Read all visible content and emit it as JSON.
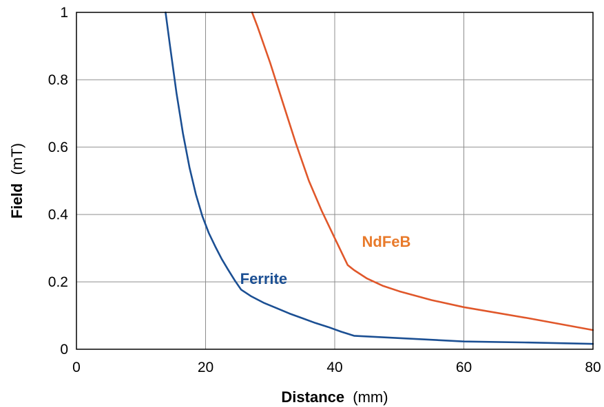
{
  "chart_data": {
    "type": "line",
    "title": "",
    "xlabel": {
      "name": "Distance",
      "unit": "(mm)"
    },
    "ylabel": {
      "name": "Field",
      "unit": "(mT)"
    },
    "xlim": [
      0,
      80
    ],
    "ylim": [
      0,
      1
    ],
    "xticks": [
      0,
      20,
      40,
      60,
      80
    ],
    "xtick_labels": [
      "0",
      "20",
      "40",
      "60",
      "80"
    ],
    "yticks": [
      0,
      0.2,
      0.4,
      0.6,
      0.8,
      1
    ],
    "ytick_labels": [
      "0",
      "0.2",
      "0.4",
      "0.6",
      "0.8",
      "1"
    ],
    "grid": true,
    "legend": "inline labels",
    "series": [
      {
        "name": "Ferrite",
        "color": "#1b4f93",
        "x": [
          13.8,
          14.5,
          15.5,
          16.5,
          17.5,
          18.5,
          19.5,
          20.5,
          21.5,
          22.5,
          23.5,
          24.5,
          25.5,
          27,
          29,
          31,
          33,
          35,
          37,
          39,
          41,
          43,
          50,
          60,
          70,
          80
        ],
        "y": [
          1.0,
          0.9,
          0.76,
          0.64,
          0.54,
          0.46,
          0.395,
          0.345,
          0.305,
          0.268,
          0.236,
          0.205,
          0.177,
          0.158,
          0.138,
          0.122,
          0.106,
          0.092,
          0.078,
          0.066,
          0.052,
          0.04,
          0.033,
          0.023,
          0.02,
          0.016
        ]
      },
      {
        "name": "NdFeB",
        "color": "#e0572a",
        "x": [
          27.2,
          28,
          30,
          32,
          34,
          36,
          38,
          40,
          42,
          43,
          45,
          47.5,
          50,
          55,
          60,
          70,
          80
        ],
        "y": [
          1.0,
          0.96,
          0.85,
          0.73,
          0.61,
          0.5,
          0.41,
          0.33,
          0.25,
          0.235,
          0.21,
          0.188,
          0.172,
          0.146,
          0.125,
          0.092,
          0.057
        ]
      }
    ],
    "annotations": [
      {
        "text": "Ferrite",
        "color": "#1b4f93",
        "x": 29,
        "y": 0.21
      },
      {
        "text": "NdFeB",
        "color": "#e87a2b",
        "x": 48,
        "y": 0.32
      }
    ]
  }
}
